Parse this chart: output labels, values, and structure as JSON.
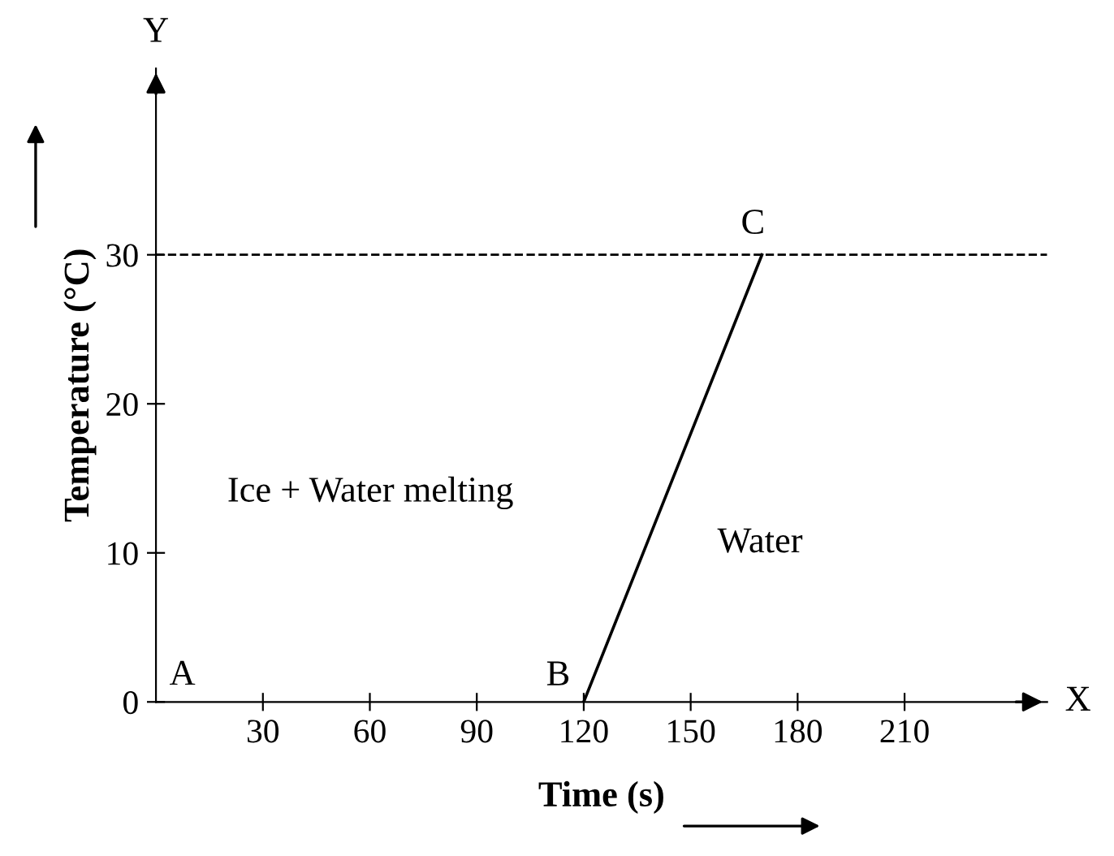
{
  "chart_data": {
    "type": "line",
    "xlabel": "Time (s)",
    "ylabel": "Temperature (°C)",
    "x": [
      120,
      170
    ],
    "series": [
      {
        "color": "#000000",
        "values": [
          0,
          30
        ]
      }
    ],
    "marker": "none",
    "line_style": "solid",
    "grid": false,
    "legend": false,
    "xlim": [
      0,
      250
    ],
    "ylim": [
      0,
      42.5
    ],
    "xticks": [
      30,
      60,
      90,
      120,
      150,
      180,
      210
    ],
    "yticks": [
      0,
      10,
      20,
      30
    ],
    "ref_lines": [
      {
        "axis": "y",
        "value": 30,
        "label": null,
        "color": "#000000",
        "line_style": "dashed"
      }
    ],
    "annotations": [
      "A",
      {
        "text": "B",
        "x": 120,
        "y": 0
      },
      {
        "text": "C",
        "x": 170,
        "y": 30
      },
      "Ice + Water melting",
      "Water",
      "X",
      "Y"
    ]
  }
}
